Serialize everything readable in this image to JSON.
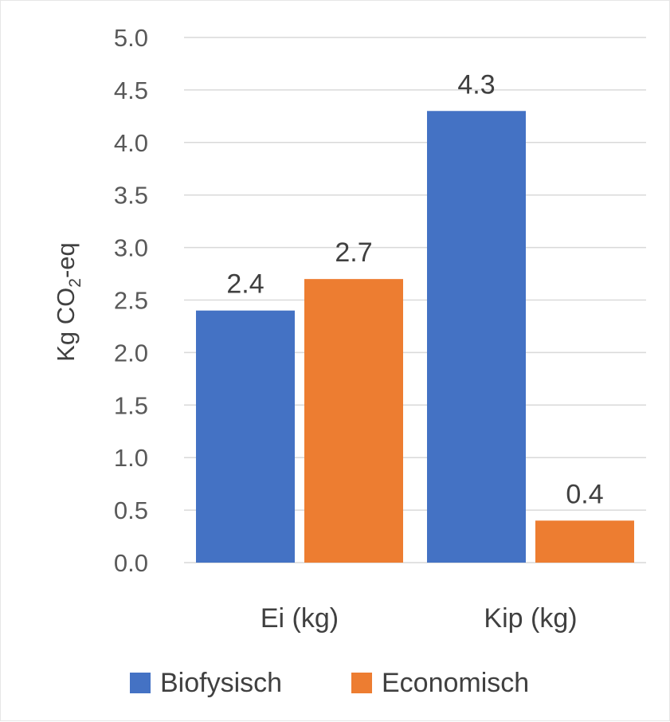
{
  "chart_data": {
    "type": "bar",
    "title": "",
    "xlabel": "",
    "ylabel": "Kg CO2-eq",
    "ylabel_parts": {
      "pre": "Kg CO",
      "sub": "2",
      "post": "-eq"
    },
    "categories": [
      "Ei (kg)",
      "Kip (kg)"
    ],
    "series": [
      {
        "name": "Biofysisch",
        "color": "#4472C4",
        "values": [
          2.4,
          4.3
        ],
        "labels": [
          "2.4",
          "4.3"
        ]
      },
      {
        "name": "Economisch",
        "color": "#ED7D31",
        "values": [
          2.7,
          0.4
        ],
        "labels": [
          "2.7",
          "0.4"
        ]
      }
    ],
    "ylim": [
      0,
      5
    ],
    "yticks": [
      "0.0",
      "0.5",
      "1.0",
      "1.5",
      "2.0",
      "2.5",
      "3.0",
      "3.5",
      "4.0",
      "4.5",
      "5.0"
    ],
    "grid": true,
    "legend_position": "bottom"
  }
}
